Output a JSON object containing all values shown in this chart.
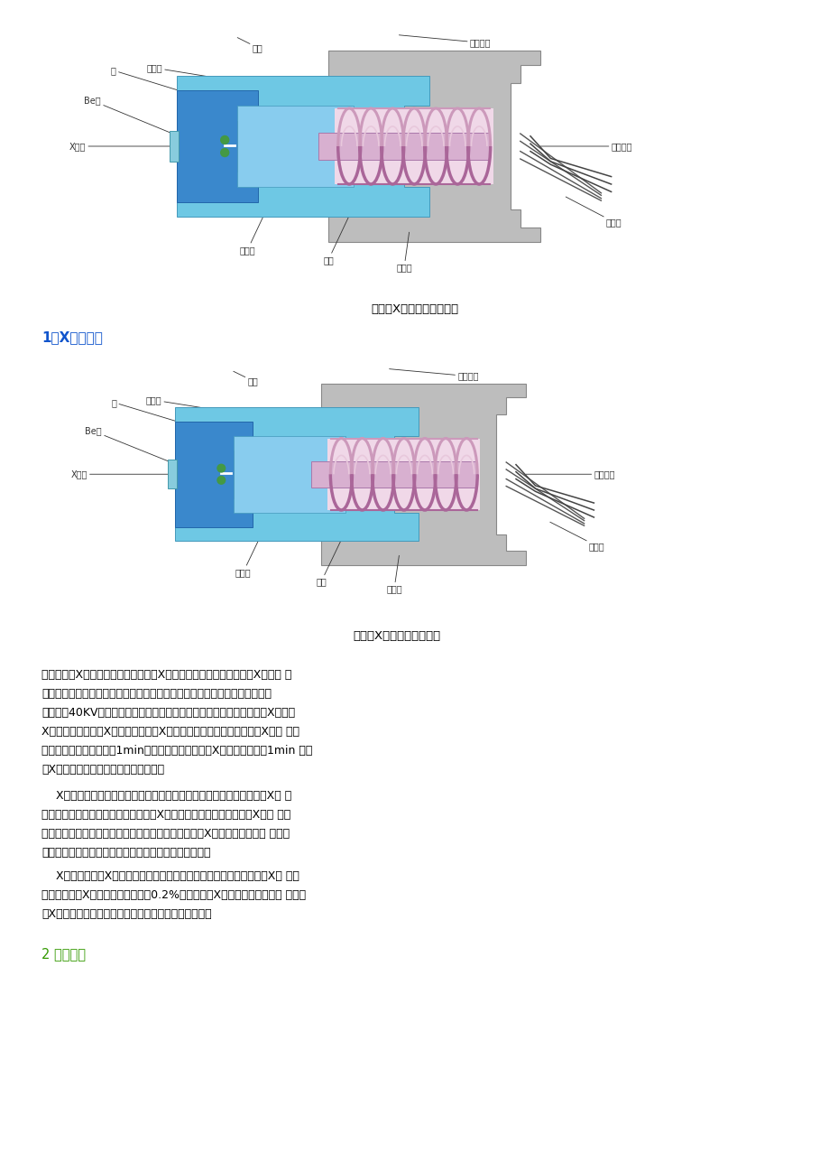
{
  "bg_color": "#ffffff",
  "page_width": 9.2,
  "page_height": 12.76,
  "diagram_caption": "端窗型X射线管结构示意图",
  "section_title": "1、X射线管二",
  "section_title_color": "#1155CC",
  "section2_title": "2 分光系统",
  "section2_title_color": "#339900",
  "body_text_1": "两种类型的X射线荧光光谱仪都需要用X射线管作为激发光源。上图是X射线管 的\n结构示意图。灯丝和靶极密封在抽成真空的金属罩内，灯丝和靶极之间加高压\n（一般为40KV），灯丝发射的电子经高压电场加速撞击在靶极上，产生X射线。\nX射线管产生的一次X射线，作为激发X射线荧光的辐射源。只有当一次X射线 的波\n长稍短于受激元素吸收限1min时，才能有效的激发出X射线荧光。大于1min 的一\n次X射线其能量不足以使受激元素激发。",
  "body_text_2": "    X射线管的靶材和管工作电压决定了能有效激发受激元素的那部分一次X射 线\n的强度。管工作电压升高，短波长一次X射线比例增加，故产生的荧光X射线 的强\n度也增强。但并不是说管工作电压越高越好，因为入射X射线的荧光激发效 率与其\n波长有关，越靠近被测元素吸收限波长，激发效率越高。",
  "body_text_3": "    X射线管产生的X射线透过铍窗入射到样品上，激发出样品元素的特征X射 线，\n正常工作时，X射线管所消耗功率的0.2%左右转变为X射线辐射，其余均变 为热能\n使X射线管升温，因此必须不断的通冷却水冷却靶电极。"
}
